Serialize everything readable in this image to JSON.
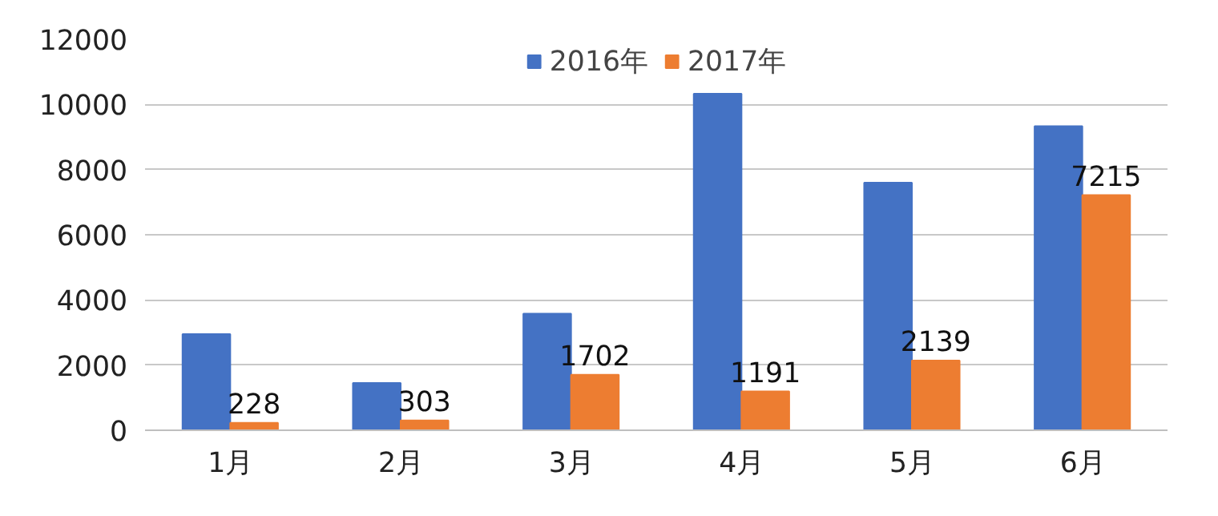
{
  "chart_data": {
    "type": "bar",
    "categories": [
      "1月",
      "2月",
      "3月",
      "4月",
      "5月",
      "6月"
    ],
    "series": [
      {
        "name": "2016年",
        "color": "#4472c4",
        "values": [
          2950,
          1450,
          3580,
          10330,
          7600,
          9330
        ]
      },
      {
        "name": "2017年",
        "color": "#ed7d31",
        "values": [
          228,
          303,
          1702,
          1191,
          2139,
          7215
        ],
        "value_labels": [
          "228",
          "303",
          "1702",
          "1191",
          "2139",
          "7215"
        ]
      }
    ],
    "ylim": [
      0,
      12000
    ],
    "yticks": [
      0,
      2000,
      4000,
      6000,
      8000,
      10000,
      12000
    ],
    "grid": "y",
    "legend": "top"
  }
}
